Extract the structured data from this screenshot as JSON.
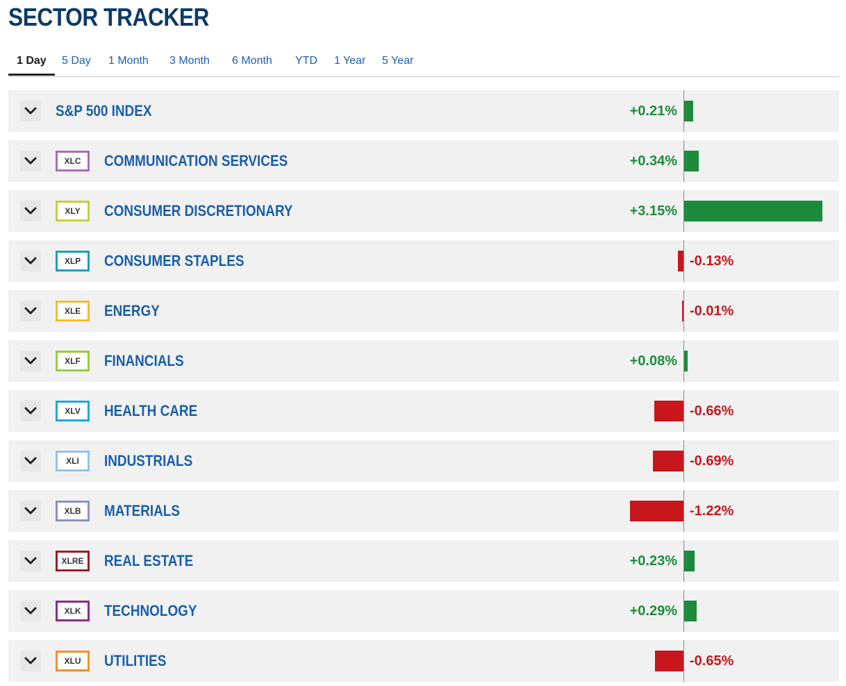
{
  "title": "SECTOR TRACKER",
  "tabs": [
    {
      "label": "1 Day",
      "active": true
    },
    {
      "label": "5 Day",
      "active": false
    },
    {
      "label": "1 Month",
      "active": false
    },
    {
      "label": "3 Month",
      "active": false
    },
    {
      "label": "6 Month",
      "active": false
    },
    {
      "label": "YTD",
      "active": false
    },
    {
      "label": "1 Year",
      "active": false
    },
    {
      "label": "5 Year",
      "active": false
    }
  ],
  "colors": {
    "positive": "#1e8a3c",
    "negative": "#c8161d",
    "title": "#0d3b66",
    "link": "#1a5fa8"
  },
  "chart_data": {
    "type": "bar",
    "categories": [
      "S&P 500 INDEX",
      "COMMUNICATION SERVICES",
      "CONSUMER DISCRETIONARY",
      "CONSUMER STAPLES",
      "ENERGY",
      "FINANCIALS",
      "HEALTH CARE",
      "INDUSTRIALS",
      "MATERIALS",
      "REAL ESTATE",
      "TECHNOLOGY",
      "UTILITIES"
    ],
    "values": [
      0.21,
      0.34,
      3.15,
      -0.13,
      -0.01,
      0.08,
      -0.66,
      -0.69,
      -1.22,
      0.23,
      0.29,
      -0.65
    ]
  },
  "rows": [
    {
      "name": "S&P 500 INDEX",
      "ticker": "",
      "ticker_color": "",
      "value": 0.21,
      "label": "+0.21%"
    },
    {
      "name": "COMMUNICATION SERVICES",
      "ticker": "XLC",
      "ticker_color": "#a86cbb",
      "value": 0.34,
      "label": "+0.34%"
    },
    {
      "name": "CONSUMER DISCRETIONARY",
      "ticker": "XLY",
      "ticker_color": "#c7cf3a",
      "value": 3.15,
      "label": "+3.15%"
    },
    {
      "name": "CONSUMER STAPLES",
      "ticker": "XLP",
      "ticker_color": "#1a9fc0",
      "value": -0.13,
      "label": "-0.13%"
    },
    {
      "name": "ENERGY",
      "ticker": "XLE",
      "ticker_color": "#f4bd2a",
      "value": -0.01,
      "label": "-0.01%"
    },
    {
      "name": "FINANCIALS",
      "ticker": "XLF",
      "ticker_color": "#9ccc3c",
      "value": 0.08,
      "label": "+0.08%"
    },
    {
      "name": "HEALTH CARE",
      "ticker": "XLV",
      "ticker_color": "#1fa8e0",
      "value": -0.66,
      "label": "-0.66%"
    },
    {
      "name": "INDUSTRIALS",
      "ticker": "XLI",
      "ticker_color": "#8ec5ea",
      "value": -0.69,
      "label": "-0.69%"
    },
    {
      "name": "MATERIALS",
      "ticker": "XLB",
      "ticker_color": "#8a92c4",
      "value": -1.22,
      "label": "-1.22%"
    },
    {
      "name": "REAL ESTATE",
      "ticker": "XLRE",
      "ticker_color": "#9b1c2c",
      "value": 0.23,
      "label": "+0.23%"
    },
    {
      "name": "TECHNOLOGY",
      "ticker": "XLK",
      "ticker_color": "#8c2a8e",
      "value": 0.29,
      "label": "+0.29%"
    },
    {
      "name": "UTILITIES",
      "ticker": "XLU",
      "ticker_color": "#f0922a",
      "value": -0.65,
      "label": "-0.65%"
    }
  ]
}
